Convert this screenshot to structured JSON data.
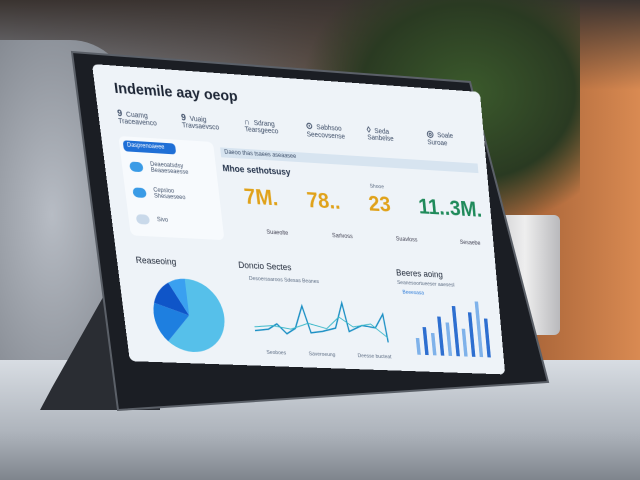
{
  "dashboard": {
    "title": "Indemile aay oeop",
    "nav": [
      {
        "icon": "9",
        "label": "Cuamg",
        "sub": "Traceavenco"
      },
      {
        "icon": "9",
        "label": "Vuaig",
        "sub": "Travsaevsco"
      },
      {
        "icon": "∩",
        "label": "Sdrang",
        "sub": "Tearsgeeco"
      },
      {
        "icon": "⊙",
        "label": "Sabhsoo",
        "sub": "Seecovsense"
      },
      {
        "icon": "◊",
        "label": "Seda",
        "sub": "Sanbelse"
      },
      {
        "icon": "◎",
        "label": "Soale",
        "sub": "Suroae"
      }
    ],
    "sidebar": {
      "pill": "Dasprenoaeee",
      "items": [
        {
          "label": "Deaeoatsdsy",
          "sub": "Beaaeseaesse"
        },
        {
          "label": "Cepsloo",
          "sub": "Shesaeseeo"
        },
        {
          "label": "Sivo",
          "sub": ""
        }
      ]
    },
    "main": {
      "banner": "Daeoo thas tsaees aseaasee",
      "title": "Mhoe sethotsusy",
      "filter": "Shooe",
      "kpis": [
        {
          "value": "7M.",
          "color": "#e0a21a"
        },
        {
          "value": "78..",
          "color": "#e0a21a"
        },
        {
          "value": "23",
          "color": "#e0a21a"
        },
        {
          "value": "11..3M.",
          "color": "#1f8a5a"
        }
      ],
      "kpi_labels": [
        "Suaeolte",
        "Sarlvoss",
        "Suavloss",
        "Sesaebe"
      ]
    },
    "panels": {
      "pie": {
        "title": "Reaseoing",
        "slices": [
          62,
          18,
          12,
          8
        ],
        "colors": [
          "#56c0ea",
          "#1e7fe0",
          "#0f55c8",
          "#3aa0f0"
        ]
      },
      "line": {
        "title": "Doncio Sectes",
        "subtitle": "Desoerssaroos Sdesas Beanes",
        "xlabels": [
          "Seoboes",
          "Saveroeung",
          "Deesse bucteat"
        ]
      },
      "bar": {
        "title": "Beeres aoing",
        "subtitle": "Seanesoortueeser aaesesl",
        "legend": "Beeesasa",
        "values": [
          3,
          5,
          4,
          7,
          6,
          9,
          5,
          8,
          10,
          7
        ]
      }
    }
  }
}
